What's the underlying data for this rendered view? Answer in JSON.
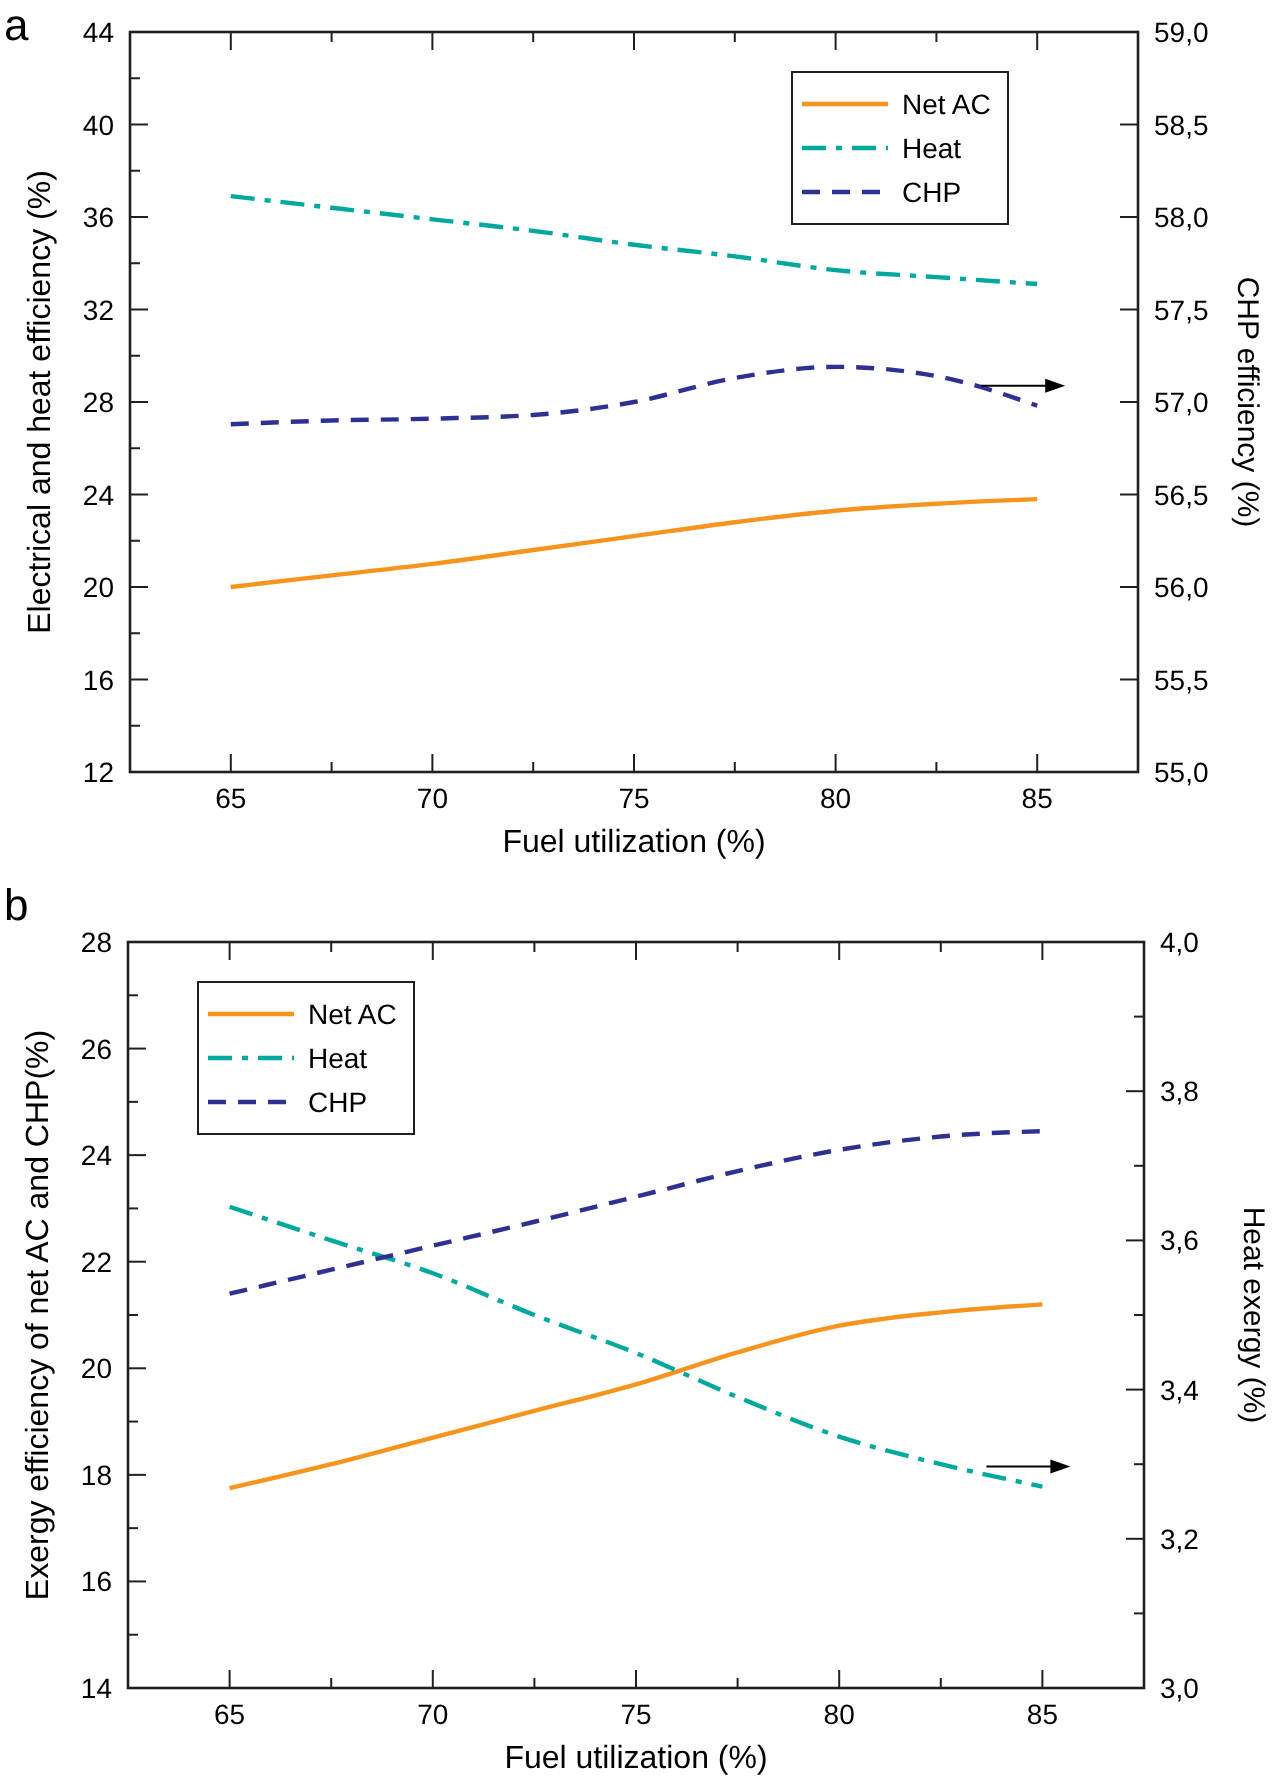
{
  "chart_data": [
    {
      "type": "line",
      "title": "a",
      "xlabel": "Fuel utilization (%)",
      "ylabel": "Electrical and heat efficiency (%)",
      "y2label": "CHP efficiency (%)",
      "legend": "top right",
      "x": [
        65,
        67.5,
        70,
        72.5,
        75,
        77.5,
        80,
        82.5,
        85
      ],
      "xlim": [
        62.5,
        87.5
      ],
      "xticks": [
        65,
        {
          "value": 67.5,
          "label": null
        },
        70,
        {
          "value": 72.5,
          "label": null
        },
        75,
        {
          "value": 77.5,
          "label": null
        },
        80,
        {
          "value": 82.5,
          "label": null
        },
        85
      ],
      "ylim": [
        12,
        44
      ],
      "yticks": [
        12,
        {
          "value": 14,
          "label": null
        },
        16,
        {
          "value": 18,
          "label": null
        },
        20,
        {
          "value": 22,
          "label": null
        },
        24,
        {
          "value": 26,
          "label": null
        },
        28,
        {
          "value": 30,
          "label": null
        },
        32,
        {
          "value": 34,
          "label": null
        },
        36,
        {
          "value": 38,
          "label": null
        },
        40,
        {
          "value": 42,
          "label": null
        },
        44
      ],
      "y2lim": [
        55,
        59
      ],
      "y2ticks": [
        {
          "value": 55,
          "label": "55,0"
        },
        {
          "value": 55.5,
          "label": "55,5"
        },
        {
          "value": 56,
          "label": "56,0"
        },
        {
          "value": 56.5,
          "label": "56,5"
        },
        {
          "value": 57,
          "label": "57,0"
        },
        {
          "value": 57.5,
          "label": "57,5"
        },
        {
          "value": 58,
          "label": "58,0"
        },
        {
          "value": 58.5,
          "label": "58,5"
        },
        {
          "value": 59,
          "label": "59,0"
        }
      ],
      "series": [
        {
          "name": "Net AC",
          "color": "#f7941d",
          "line_style": "solid",
          "values": [
            20.0,
            20.5,
            21.0,
            21.6,
            22.2,
            22.8,
            23.3,
            23.6,
            23.8
          ]
        },
        {
          "name": "Heat",
          "color": "#00a89d",
          "line_style": "dashdot",
          "values": [
            36.9,
            36.4,
            35.9,
            35.4,
            34.8,
            34.3,
            33.7,
            33.4,
            33.1
          ]
        },
        {
          "name": "CHP",
          "color": "#2e3192",
          "line_style": "dashed",
          "axis": "y2",
          "values": [
            56.88,
            56.9,
            56.91,
            56.93,
            57.0,
            57.13,
            57.19,
            57.14,
            56.98
          ]
        }
      ]
    },
    {
      "type": "line",
      "title": "b",
      "xlabel": "Fuel utilization (%)",
      "ylabel": "Exergy efficiency of net AC and CHP(%)",
      "y2label": "Heat exergy (%)",
      "legend": "top left",
      "x": [
        65,
        67.5,
        70,
        72.5,
        75,
        77.5,
        80,
        82.5,
        85
      ],
      "xlim": [
        62.5,
        87.5
      ],
      "xticks": [
        65,
        {
          "value": 67.5,
          "label": null
        },
        70,
        {
          "value": 72.5,
          "label": null
        },
        75,
        {
          "value": 77.5,
          "label": null
        },
        80,
        {
          "value": 82.5,
          "label": null
        },
        85
      ],
      "ylim": [
        14,
        28
      ],
      "yticks": [
        14,
        {
          "value": 15,
          "label": null
        },
        16,
        {
          "value": 17,
          "label": null
        },
        18,
        {
          "value": 19,
          "label": null
        },
        20,
        {
          "value": 21,
          "label": null
        },
        22,
        {
          "value": 23,
          "label": null
        },
        24,
        {
          "value": 25,
          "label": null
        },
        26,
        {
          "value": 27,
          "label": null
        },
        28
      ],
      "y2lim": [
        3,
        4
      ],
      "y2ticks": [
        {
          "value": 3,
          "label": "3,0"
        },
        {
          "value": 3.1,
          "label": null
        },
        {
          "value": 3.2,
          "label": "3,2"
        },
        {
          "value": 3.3,
          "label": null
        },
        {
          "value": 3.4,
          "label": "3,4"
        },
        {
          "value": 3.5,
          "label": null
        },
        {
          "value": 3.6,
          "label": "3,6"
        },
        {
          "value": 3.7,
          "label": null
        },
        {
          "value": 3.8,
          "label": "3,8"
        },
        {
          "value": 3.9,
          "label": null
        },
        {
          "value": 4,
          "label": "4,0"
        }
      ],
      "series": [
        {
          "name": "Net AC",
          "color": "#f7941d",
          "line_style": "solid",
          "values": [
            17.75,
            18.2,
            18.7,
            19.2,
            19.7,
            20.3,
            20.8,
            21.05,
            21.2
          ]
        },
        {
          "name": "Heat",
          "color": "#00a89d",
          "line_style": "dashdot",
          "axis": "y2",
          "values": [
            3.645,
            3.6,
            3.556,
            3.5,
            3.449,
            3.39,
            3.337,
            3.3,
            3.27
          ]
        },
        {
          "name": "CHP",
          "color": "#2e3192",
          "line_style": "dashed",
          "values": [
            21.4,
            21.85,
            22.3,
            22.75,
            23.22,
            23.7,
            24.1,
            24.35,
            24.45
          ]
        }
      ]
    }
  ]
}
